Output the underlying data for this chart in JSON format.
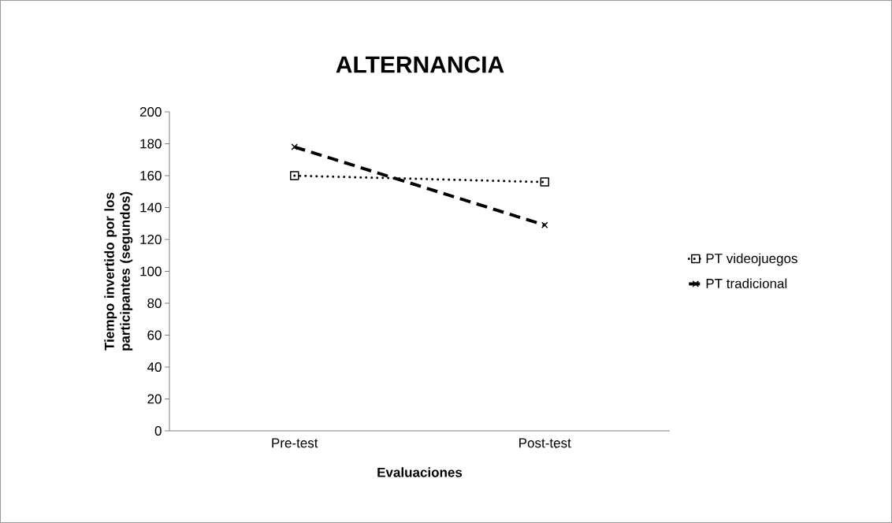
{
  "chart_data": {
    "type": "line",
    "title": "ALTERNANCIA",
    "xlabel": "Evaluaciones",
    "ylabel": "Tiempo invertido por los participantes (segundos)",
    "categories": [
      "Pre-test",
      "Post-test"
    ],
    "series": [
      {
        "name": "PT videojuegos",
        "color": "#000000",
        "values": [
          160,
          156
        ],
        "marker": "square",
        "line_style": "dotted"
      },
      {
        "name": "PT tradicional",
        "color": "#000000",
        "values": [
          178,
          129
        ],
        "marker": "cross",
        "line_style": "dashed"
      }
    ],
    "ylim": [
      0,
      200
    ],
    "yticks": [
      0,
      20,
      40,
      60,
      80,
      100,
      120,
      140,
      160,
      180,
      200
    ],
    "grid": false,
    "legend": "right"
  }
}
